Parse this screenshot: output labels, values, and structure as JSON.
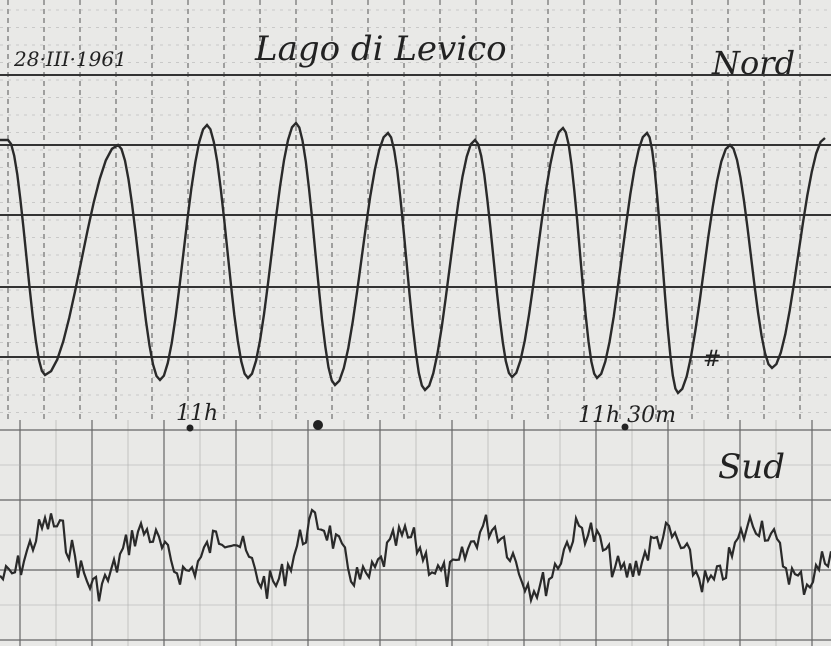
{
  "header": {
    "date": "28·III·1961",
    "title": "Lago di Levico",
    "north_label": "Nord"
  },
  "annotations": {
    "time_1": "11h",
    "time_2": "11h 30m",
    "mark": "#"
  },
  "lower_trace": {
    "label": "Sud"
  }
}
